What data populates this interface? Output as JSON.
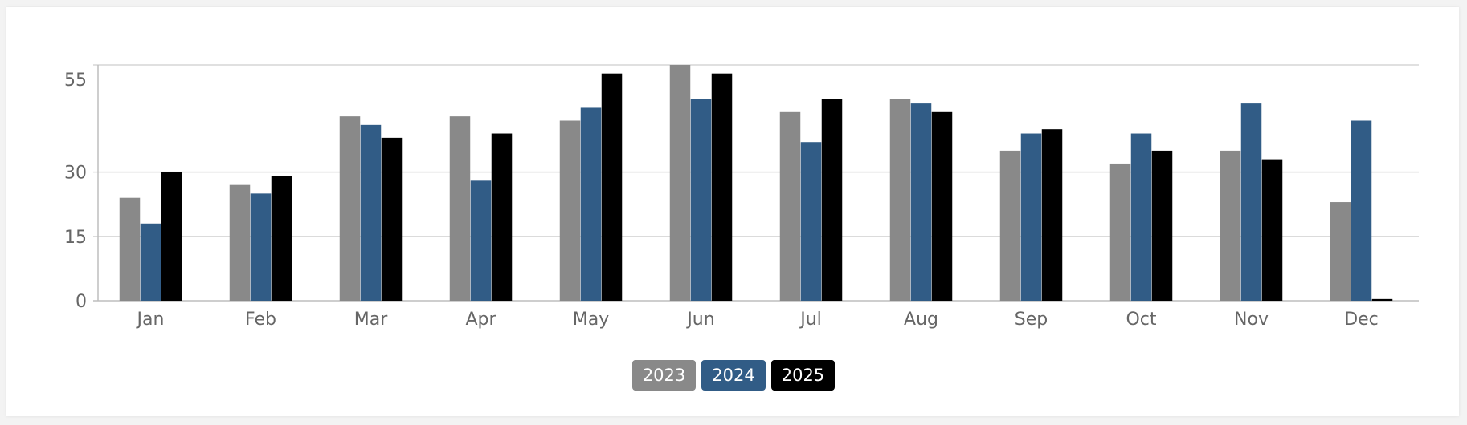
{
  "chart_data": {
    "type": "bar",
    "categories": [
      "Jan",
      "Feb",
      "Mar",
      "Apr",
      "May",
      "Jun",
      "Jul",
      "Aug",
      "Sep",
      "Oct",
      "Nov",
      "Dec"
    ],
    "series": [
      {
        "name": "2023",
        "color": "#898989",
        "values": [
          24,
          27,
          43,
          43,
          42,
          55,
          44,
          47,
          35,
          32,
          35,
          23
        ]
      },
      {
        "name": "2024",
        "color": "#315c86",
        "values": [
          18,
          25,
          41,
          28,
          45,
          47,
          37,
          46,
          39,
          39,
          46,
          42
        ]
      },
      {
        "name": "2025",
        "color": "#000000",
        "values": [
          30,
          29,
          38,
          39,
          53,
          53,
          47,
          44,
          40,
          35,
          33,
          0.4
        ]
      }
    ],
    "yticks": [
      0,
      15,
      30,
      55
    ],
    "ylim": [
      0,
      55
    ],
    "grid": true,
    "legend_position": "bottom-center",
    "title": "",
    "xlabel": "",
    "ylabel": ""
  }
}
